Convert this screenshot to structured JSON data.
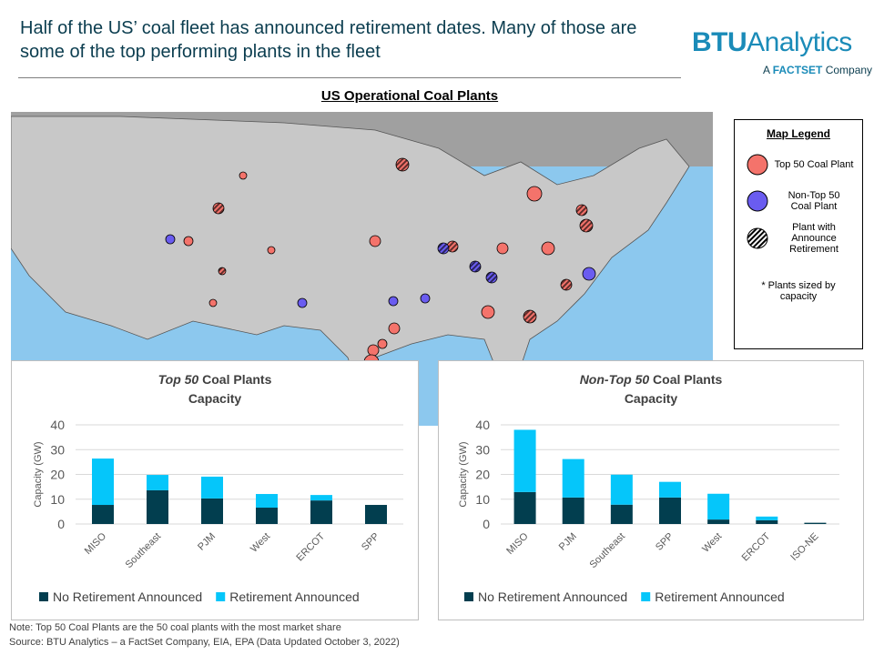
{
  "header": {
    "title": "Half of the US’ coal fleet has announced retirement dates. Many of those are some of the top performing plants in the fleet",
    "logo_main": "BTU",
    "logo_rest": "Analytics",
    "logo_sub_a": "A ",
    "logo_sub_b": "FACTSET",
    "logo_sub_c": " Company"
  },
  "map": {
    "title": "US Operational Coal Plants",
    "legend": {
      "title": "Map Legend",
      "items": [
        "Top 50 Coal Plant",
        "Non-Top 50 Coal Plant",
        "Plant with Announce Retirement"
      ],
      "footnote": "* Plants sized by capacity"
    },
    "colors": {
      "top50": "#f4736b",
      "nontop50": "#6a5cf0",
      "land": "#c8c8c8",
      "water": "#8cc8ee"
    }
  },
  "chart_data": [
    {
      "type": "bar",
      "stacked": true,
      "title_italic": "Top 50",
      "title_rest": " Coal Plants",
      "subtitle": "Capacity",
      "ylabel": "Capacity (GW)",
      "ylim": [
        0,
        40
      ],
      "yticks": [
        0,
        10,
        20,
        30,
        40
      ],
      "grid": true,
      "legend_placement": "bottom",
      "categories": [
        "MISO",
        "Southeast",
        "PJM",
        "West",
        "ERCOT",
        "SPP"
      ],
      "series": [
        {
          "name": "No Retirement Announced",
          "color": "#023e4f",
          "values": [
            7.7,
            13.6,
            10.3,
            6.6,
            9.5,
            7.7
          ]
        },
        {
          "name": "Retirement Announced",
          "color": "#05c6fa",
          "values": [
            18.7,
            6.2,
            8.8,
            5.5,
            2.2,
            0
          ]
        }
      ]
    },
    {
      "type": "bar",
      "stacked": true,
      "title_italic": "Non-Top 50",
      "title_rest": " Coal Plants",
      "subtitle": "Capacity",
      "ylabel": "Capacity (GW)",
      "ylim": [
        0,
        40
      ],
      "yticks": [
        0,
        10,
        20,
        30,
        40
      ],
      "grid": true,
      "legend_placement": "bottom",
      "categories": [
        "MISO",
        "PJM",
        "Southeast",
        "SPP",
        "West",
        "ERCOT",
        "ISO-NE"
      ],
      "series": [
        {
          "name": "No Retirement Announced",
          "color": "#023e4f",
          "values": [
            12.9,
            10.7,
            7.8,
            10.7,
            1.8,
            1.5,
            0.5
          ]
        },
        {
          "name": "Retirement Announced",
          "color": "#05c6fa",
          "values": [
            25.1,
            15.5,
            12.1,
            6.3,
            10.4,
            1.5,
            0
          ]
        }
      ]
    }
  ],
  "notes": {
    "note": "Note:  Top 50 Coal Plants are the 50 coal plants with the most market share",
    "source": "Source: BTU Analytics – a FactSet Company, EIA, EPA (Data Updated October 3, 2022)"
  }
}
